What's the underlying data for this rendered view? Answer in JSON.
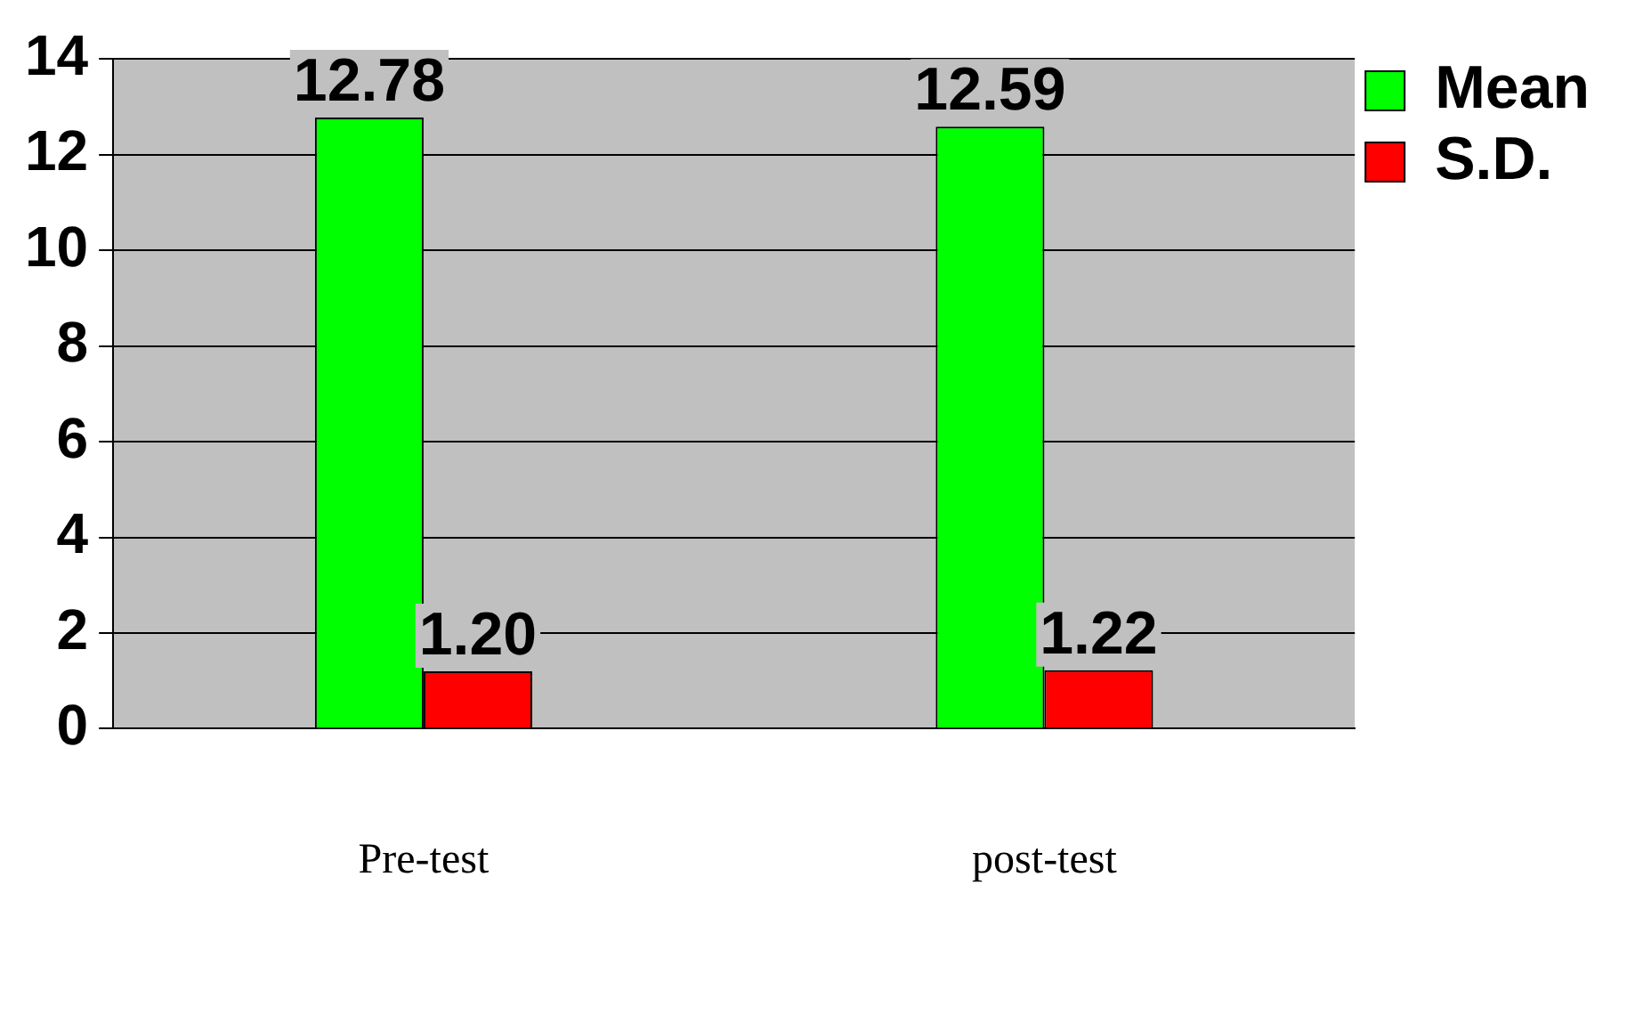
{
  "chart_data": {
    "type": "bar",
    "categories": [
      "Pre-test",
      "post-test"
    ],
    "series": [
      {
        "name": "Mean",
        "color": "#00ff00",
        "values": [
          12.78,
          12.59
        ]
      },
      {
        "name": "S.D.",
        "color": "#ff0000",
        "values": [
          1.2,
          1.22
        ]
      }
    ],
    "value_labels": [
      [
        "12.78",
        "12.59"
      ],
      [
        "1.20",
        "1.22"
      ]
    ],
    "ylim": [
      0,
      14
    ],
    "yticks": [
      0,
      2,
      4,
      6,
      8,
      10,
      12,
      14
    ],
    "grid": "y",
    "legend": "top right"
  }
}
